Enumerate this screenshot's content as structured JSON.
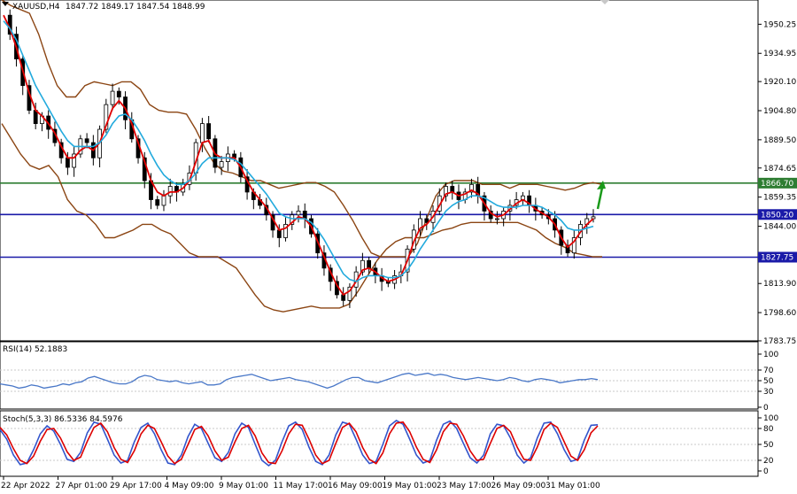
{
  "header": {
    "symbol": "XAUUSD,H4",
    "ohlc": "1847.72 1849.17 1847.54 1848.99"
  },
  "colors": {
    "background": "#ffffff",
    "grid": "#c8c8c8",
    "bull_candle": "#000000",
    "bear_candle": "#000000",
    "ma_fast": "#e00000",
    "ma_slow": "#22aadd",
    "bollinger": "#8b4513",
    "resistance_line": "#2e7d32",
    "support_line": "#1a1aa8",
    "rsi_line": "#4a78c8",
    "stoch_main": "#3355cc",
    "stoch_signal": "#dd0000",
    "arrow": "#1a9a1a"
  },
  "chart_data": [
    {
      "type": "candlestick",
      "panel": "price",
      "title": "XAUUSD,H4 1847.72 1849.17 1847.54 1848.99",
      "ylim": [
        1783.75,
        1963.0
      ],
      "y_ticks": [
        "1950.25",
        "1934.95",
        "1920.10",
        "1904.80",
        "1889.50",
        "1874.65",
        "1859.35",
        "1844.00",
        "1813.90",
        "1798.60",
        "1783.75"
      ],
      "x_ticks": [
        "22 Apr 2022",
        "27 Apr 01:00",
        "29 Apr 17:00",
        "4 May 09:00",
        "9 May 01:00",
        "11 May 17:00",
        "16 May 09:00",
        "19 May 01:00",
        "23 May 17:00",
        "26 May 09:00",
        "31 May 01:00"
      ],
      "horizontal_levels": [
        {
          "value": 1866.7,
          "label": "1866.70",
          "color": "#2e7d32"
        },
        {
          "value": 1850.2,
          "label": "1850.20",
          "color": "#1a1aa8"
        },
        {
          "value": 1827.75,
          "label": "1827.75",
          "color": "#1a1aa8"
        }
      ],
      "close_path": [
        1955,
        1945,
        1932,
        1918,
        1905,
        1898,
        1902,
        1895,
        1888,
        1880,
        1875,
        1882,
        1890,
        1888,
        1880,
        1895,
        1908,
        1915,
        1912,
        1900,
        1890,
        1880,
        1868,
        1858,
        1855,
        1860,
        1865,
        1862,
        1866,
        1872,
        1888,
        1898,
        1890,
        1875,
        1878,
        1882,
        1880,
        1870,
        1862,
        1858,
        1855,
        1850,
        1842,
        1838,
        1845,
        1850,
        1852,
        1848,
        1840,
        1830,
        1822,
        1815,
        1808,
        1805,
        1812,
        1820,
        1826,
        1822,
        1818,
        1815,
        1814,
        1818,
        1820,
        1832,
        1842,
        1848,
        1846,
        1852,
        1860,
        1865,
        1862,
        1858,
        1862,
        1866,
        1860,
        1852,
        1848,
        1848,
        1852,
        1855,
        1858,
        1860,
        1855,
        1852,
        1850,
        1848,
        1842,
        1834,
        1830,
        1838,
        1845,
        1848,
        1849
      ],
      "series": [
        {
          "name": "",
          "kind": "moving-average",
          "values": [
            1955,
            1948,
            1938,
            1926,
            1914,
            1905,
            1902,
            1898,
            1893,
            1886,
            1880,
            1880,
            1884,
            1886,
            1884,
            1888,
            1897,
            1906,
            1910,
            1906,
            1898,
            1888,
            1878,
            1868,
            1862,
            1860,
            1862,
            1862,
            1864,
            1868,
            1878,
            1888,
            1889,
            1882,
            1880,
            1880,
            1880,
            1875,
            1868,
            1862,
            1858,
            1854,
            1848,
            1842,
            1843,
            1846,
            1849,
            1848,
            1844,
            1836,
            1828,
            1820,
            1813,
            1808,
            1810,
            1815,
            1821,
            1822,
            1820,
            1817,
            1815,
            1816,
            1818,
            1826,
            1836,
            1843,
            1845,
            1849,
            1855,
            1861,
            1862,
            1860,
            1861,
            1863,
            1861,
            1856,
            1851,
            1849,
            1850,
            1853,
            1856,
            1858,
            1856,
            1853,
            1851,
            1849,
            1845,
            1838,
            1833,
            1836,
            1841,
            1845,
            1848
          ]
        },
        {
          "name": "",
          "kind": "moving-average",
          "values": [
            1952,
            1948,
            1942,
            1934,
            1926,
            1918,
            1912,
            1906,
            1900,
            1894,
            1889,
            1886,
            1886,
            1886,
            1886,
            1888,
            1892,
            1898,
            1902,
            1903,
            1900,
            1895,
            1889,
            1882,
            1876,
            1871,
            1868,
            1866,
            1866,
            1868,
            1872,
            1877,
            1880,
            1880,
            1880,
            1880,
            1879,
            1877,
            1873,
            1869,
            1865,
            1861,
            1856,
            1851,
            1849,
            1848,
            1848,
            1848,
            1846,
            1842,
            1837,
            1831,
            1825,
            1819,
            1816,
            1815,
            1817,
            1818,
            1818,
            1818,
            1817,
            1817,
            1818,
            1821,
            1826,
            1832,
            1837,
            1842,
            1847,
            1852,
            1855,
            1857,
            1858,
            1860,
            1860,
            1859,
            1857,
            1855,
            1854,
            1854,
            1854,
            1855,
            1855,
            1855,
            1854,
            1852,
            1850,
            1847,
            1843,
            1842,
            1842,
            1843,
            1844
          ]
        },
        {
          "name": "",
          "kind": "bollinger-upper",
          "values": [
            1963,
            1960,
            1958,
            1956,
            1945,
            1930,
            1918,
            1912,
            1912,
            1918,
            1920,
            1919,
            1918,
            1920,
            1920,
            1916,
            1908,
            1905,
            1904,
            1904,
            1903,
            1895,
            1885,
            1877,
            1873,
            1872,
            1870,
            1868,
            1868,
            1866,
            1864,
            1865,
            1866,
            1867,
            1867,
            1865,
            1862,
            1855,
            1847,
            1838,
            1830,
            1828,
            1828,
            1828,
            1828,
            1835,
            1848,
            1860,
            1866,
            1868,
            1868,
            1868,
            1866,
            1866,
            1866,
            1864,
            1866,
            1866,
            1866,
            1865,
            1864,
            1863,
            1864,
            1866,
            1867,
            1866
          ]
        },
        {
          "name": "",
          "kind": "bollinger-lower",
          "values": [
            1898,
            1890,
            1882,
            1876,
            1874,
            1876,
            1870,
            1858,
            1852,
            1850,
            1845,
            1838,
            1838,
            1840,
            1842,
            1845,
            1845,
            1842,
            1840,
            1835,
            1830,
            1828,
            1828,
            1828,
            1825,
            1822,
            1815,
            1808,
            1802,
            1800,
            1799,
            1800,
            1801,
            1802,
            1801,
            1801,
            1801,
            1803,
            1810,
            1818,
            1826,
            1832,
            1836,
            1838,
            1838,
            1838,
            1840,
            1842,
            1843,
            1845,
            1846,
            1846,
            1846,
            1846,
            1846,
            1846,
            1844,
            1842,
            1838,
            1835,
            1833,
            1830,
            1829,
            1828,
            1828
          ]
        }
      ]
    },
    {
      "type": "line",
      "panel": "rsi",
      "title": "RSI(14) 52.1883",
      "ylim": [
        0,
        100
      ],
      "y_ticks": [
        "100",
        "70",
        "50",
        "30",
        "0"
      ],
      "series": [
        {
          "name": "",
          "values": [
            44,
            42,
            40,
            36,
            38,
            42,
            40,
            36,
            38,
            40,
            44,
            42,
            46,
            48,
            55,
            58,
            54,
            50,
            46,
            44,
            44,
            48,
            56,
            60,
            58,
            52,
            50,
            48,
            50,
            46,
            44,
            46,
            48,
            42,
            42,
            44,
            52,
            56,
            58,
            60,
            62,
            58,
            54,
            50,
            52,
            54,
            56,
            52,
            50,
            48,
            44,
            40,
            36,
            40,
            46,
            52,
            56,
            56,
            50,
            48,
            46,
            50,
            54,
            58,
            62,
            64,
            60,
            62,
            64,
            60,
            62,
            60,
            56,
            54,
            52,
            54,
            56,
            54,
            52,
            50,
            52,
            56,
            54,
            50,
            48,
            52,
            54,
            52,
            50,
            46,
            48,
            50,
            52,
            52,
            54,
            52
          ]
        }
      ]
    },
    {
      "type": "line",
      "panel": "stochastic",
      "title": "Stoch(5,3,3) 86.5336 84.5976",
      "ylim": [
        0,
        100
      ],
      "y_ticks": [
        "100",
        "80",
        "50",
        "20",
        "0"
      ],
      "series": [
        {
          "name": "",
          "values": [
            78,
            60,
            30,
            12,
            15,
            40,
            70,
            85,
            75,
            50,
            22,
            18,
            35,
            72,
            92,
            88,
            60,
            30,
            15,
            20,
            55,
            82,
            90,
            70,
            40,
            15,
            12,
            30,
            65,
            88,
            80,
            52,
            25,
            18,
            35,
            70,
            90,
            82,
            50,
            20,
            10,
            20,
            55,
            85,
            92,
            78,
            45,
            18,
            12,
            30,
            68,
            92,
            88,
            60,
            30,
            14,
            18,
            50,
            85,
            95,
            88,
            60,
            30,
            15,
            20,
            58,
            88,
            94,
            80,
            52,
            25,
            15,
            30,
            70,
            88,
            85,
            62,
            30,
            15,
            25,
            62,
            90,
            92,
            70,
            40,
            18,
            22,
            58,
            86,
            87
          ]
        },
        {
          "name": "",
          "values": [
            82,
            68,
            42,
            20,
            14,
            28,
            56,
            78,
            80,
            62,
            36,
            20,
            26,
            56,
            82,
            90,
            74,
            44,
            22,
            16,
            38,
            70,
            86,
            80,
            55,
            28,
            14,
            22,
            50,
            78,
            84,
            66,
            38,
            20,
            26,
            55,
            80,
            86,
            66,
            34,
            16,
            14,
            38,
            70,
            88,
            86,
            60,
            30,
            14,
            20,
            52,
            82,
            90,
            74,
            44,
            22,
            14,
            34,
            70,
            90,
            92,
            74,
            45,
            22,
            16,
            40,
            74,
            90,
            88,
            66,
            38,
            20,
            22,
            52,
            80,
            86,
            74,
            45,
            22,
            20,
            45,
            78,
            90,
            82,
            55,
            28,
            20,
            40,
            72,
            85
          ]
        }
      ]
    }
  ]
}
